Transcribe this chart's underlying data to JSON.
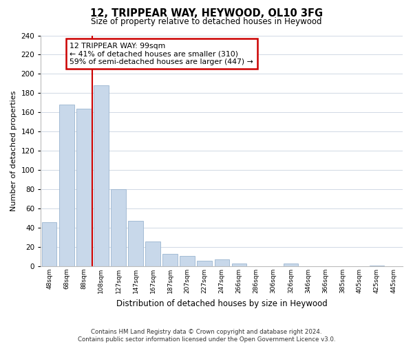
{
  "title": "12, TRIPPEAR WAY, HEYWOOD, OL10 3FG",
  "subtitle": "Size of property relative to detached houses in Heywood",
  "xlabel": "Distribution of detached houses by size in Heywood",
  "ylabel": "Number of detached properties",
  "bar_labels": [
    "48sqm",
    "68sqm",
    "88sqm",
    "108sqm",
    "127sqm",
    "147sqm",
    "167sqm",
    "187sqm",
    "207sqm",
    "227sqm",
    "247sqm",
    "266sqm",
    "286sqm",
    "306sqm",
    "326sqm",
    "346sqm",
    "366sqm",
    "385sqm",
    "405sqm",
    "425sqm",
    "445sqm"
  ],
  "bar_values": [
    46,
    168,
    164,
    188,
    80,
    47,
    26,
    13,
    11,
    6,
    7,
    3,
    0,
    0,
    3,
    0,
    0,
    0,
    0,
    1,
    0
  ],
  "bar_color": "#c8d8ea",
  "bar_edge_color": "#9ab5cf",
  "vline_color": "#cc0000",
  "annotation_title": "12 TRIPPEAR WAY: 99sqm",
  "annotation_line1": "← 41% of detached houses are smaller (310)",
  "annotation_line2": "59% of semi-detached houses are larger (447) →",
  "annotation_box_color": "#ffffff",
  "annotation_box_edge": "#cc0000",
  "ylim": [
    0,
    240
  ],
  "yticks": [
    0,
    20,
    40,
    60,
    80,
    100,
    120,
    140,
    160,
    180,
    200,
    220,
    240
  ],
  "footer_line1": "Contains HM Land Registry data © Crown copyright and database right 2024.",
  "footer_line2": "Contains public sector information licensed under the Open Government Licence v3.0.",
  "bg_color": "#ffffff",
  "plot_bg_color": "#ffffff",
  "grid_color": "#d0d8e4"
}
